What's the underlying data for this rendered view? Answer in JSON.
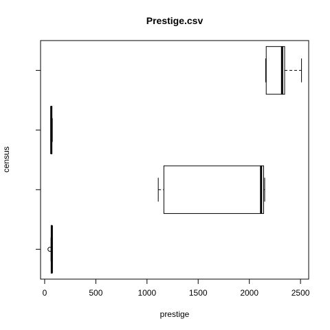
{
  "chart_data": {
    "type": "boxplot",
    "title": "Prestige.csv",
    "xlabel": "prestige",
    "ylabel": "census",
    "orientation": "horizontal",
    "xlim": [
      -40,
      2580
    ],
    "xticks": [
      0,
      500,
      1000,
      1500,
      2000,
      2500
    ],
    "xtick_labels": [
      "0",
      "500",
      "1000",
      "1500",
      "2000",
      "2500"
    ],
    "boxes": [
      {
        "whisker_low": 62,
        "q1": 64,
        "median": 70,
        "q3": 73,
        "whisker_high": 75,
        "outliers": [
          52
        ]
      },
      {
        "whisker_low": 1110,
        "q1": 1165,
        "median": 2115,
        "q3": 2140,
        "whisker_high": 2150,
        "outliers": []
      },
      {
        "whisker_low": 60,
        "q1": 62,
        "median": 65,
        "q3": 70,
        "whisker_high": 75,
        "outliers": []
      },
      {
        "whisker_low": 2160,
        "q1": 2165,
        "median": 2320,
        "q3": 2345,
        "whisker_high": 2510,
        "outliers": []
      }
    ]
  }
}
